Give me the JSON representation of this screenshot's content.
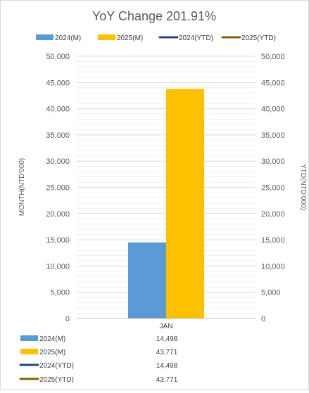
{
  "chart_data": {
    "type": "bar",
    "title": "YoY Change 201.91%",
    "categories": [
      "JAN"
    ],
    "series": [
      {
        "name": "2024(M)",
        "kind": "bar",
        "axis": "left",
        "color": "#5b9bd5",
        "values": [
          14498
        ]
      },
      {
        "name": "2025(M)",
        "kind": "bar",
        "axis": "left",
        "color": "#ffc000",
        "values": [
          43771
        ]
      },
      {
        "name": "2024(YTD)",
        "kind": "line",
        "axis": "right",
        "color": "#264478",
        "values": [
          14498
        ]
      },
      {
        "name": "2025(YTD)",
        "kind": "line",
        "axis": "right",
        "color": "#806000",
        "values": [
          43771
        ]
      }
    ],
    "ylabel": "MONTH(NTD'000)",
    "y2label": "YTD(NTD'000)",
    "ylim": [
      0,
      50000
    ],
    "y2lim": [
      0,
      50000
    ],
    "yticks": [
      "0",
      "5,000",
      "10,000",
      "15,000",
      "20,000",
      "25,000",
      "30,000",
      "35,000",
      "40,000",
      "45,000",
      "50,000"
    ],
    "y2ticks": [
      "0",
      "5,000",
      "10,000",
      "15,000",
      "20,000",
      "25,000",
      "30,000",
      "35,000",
      "40,000",
      "45,000",
      "50,000"
    ],
    "grid": true,
    "legend": "top",
    "table": [
      {
        "name": "2024(M)",
        "value": "14,498"
      },
      {
        "name": "2025(M)",
        "value": "43,771"
      },
      {
        "name": "2024(YTD)",
        "value": "14,498"
      },
      {
        "name": "2025(YTD)",
        "value": "43,771"
      }
    ]
  }
}
